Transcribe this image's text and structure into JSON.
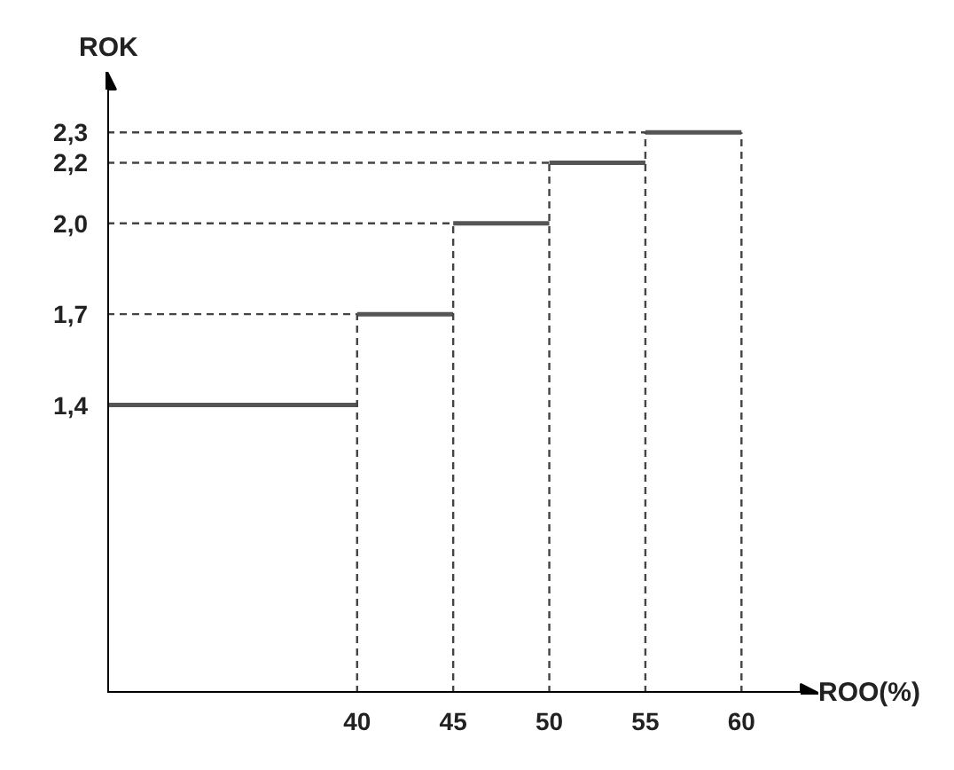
{
  "chart_data": {
    "type": "step",
    "xlabel": "ROO(%)",
    "ylabel": "ROK",
    "x": [
      27,
      40,
      45,
      50,
      55,
      60
    ],
    "series": [
      {
        "color": "#555555",
        "values": [
          1.4,
          1.7,
          2.0,
          2.2,
          2.3,
          2.3
        ]
      },
      {
        "type": "line",
        "line_style": "dashed",
        "color": "#444444",
        "x": [
          27,
          40
        ],
        "values": [
          1.7,
          1.7
        ]
      },
      {
        "type": "line",
        "line_style": "dashed",
        "color": "#444444",
        "x": [
          27,
          45
        ],
        "values": [
          2.0,
          2.0
        ]
      },
      {
        "type": "line",
        "line_style": "dashed",
        "color": "#444444",
        "x": [
          27,
          50
        ],
        "values": [
          2.2,
          2.2
        ]
      },
      {
        "type": "line",
        "line_style": "dashed",
        "color": "#444444",
        "x": [
          27,
          55
        ],
        "values": [
          2.3,
          2.3
        ]
      },
      {
        "type": "line",
        "line_style": "dashed",
        "color": "#444444",
        "x": [
          40,
          40
        ],
        "values": [
          0.45,
          1.7
        ]
      },
      {
        "type": "line",
        "line_style": "dashed",
        "color": "#444444",
        "x": [
          45,
          45
        ],
        "values": [
          0.45,
          2.0
        ]
      },
      {
        "type": "line",
        "line_style": "dashed",
        "color": "#444444",
        "x": [
          50,
          50
        ],
        "values": [
          0.45,
          2.2
        ]
      },
      {
        "type": "line",
        "line_style": "dashed",
        "color": "#444444",
        "x": [
          55,
          55
        ],
        "values": [
          0.45,
          2.3
        ]
      },
      {
        "type": "line",
        "line_style": "dashed",
        "color": "#444444",
        "x": [
          60,
          60
        ],
        "values": [
          0.45,
          2.3
        ]
      }
    ],
    "xlim": [
      27,
      64
    ],
    "ylim": [
      0.45,
      2.5
    ],
    "xticks": [
      40,
      45,
      50,
      55,
      60
    ],
    "yticks": [
      {
        "value": 1.4,
        "label": "1,4"
      },
      {
        "value": 1.7,
        "label": "1,7"
      },
      {
        "value": 2.0,
        "label": "2,0"
      },
      {
        "value": 2.2,
        "label": "2,2"
      },
      {
        "value": 2.3,
        "label": "2,3"
      }
    ],
    "grid": false
  }
}
